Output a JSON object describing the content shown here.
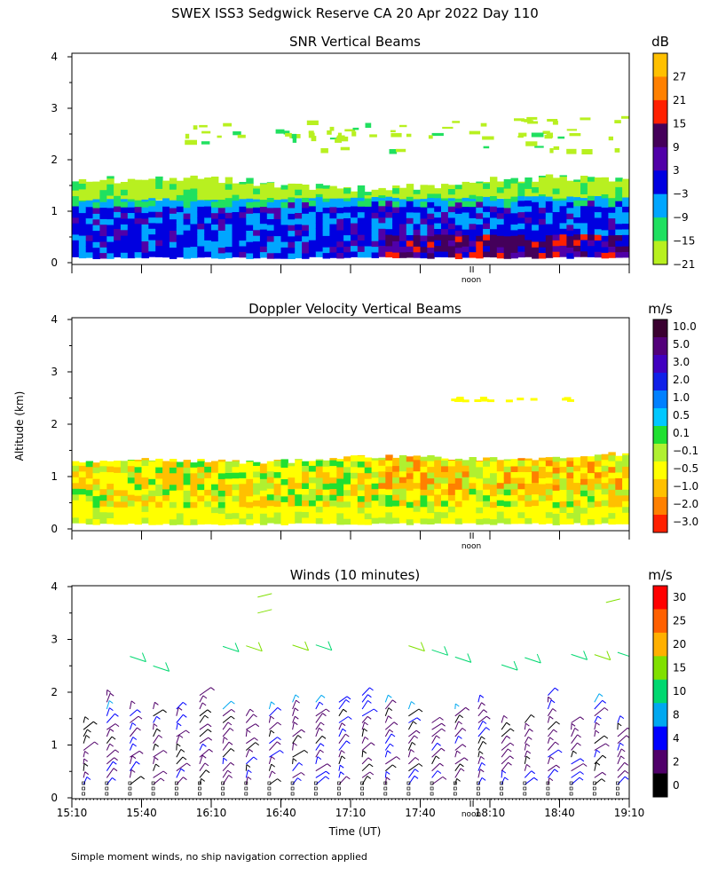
{
  "chart_data": [
    {
      "type": "heatmap",
      "title": "SNR Vertical Beams",
      "units": "dB",
      "ylabel": "Altitude (km)",
      "ylim": [
        0,
        4
      ],
      "y_ticks": [
        "0",
        "1",
        "2",
        "3",
        "4"
      ],
      "x_range": [
        "15:10",
        "19:10"
      ],
      "colorbar_labels": [
        "27",
        "21",
        "15",
        "9",
        "3",
        "−3",
        "−9",
        "−15",
        "−21"
      ],
      "colorbar_colors": [
        "#ffc000",
        "#ff8000",
        "#ff2000",
        "#44005a",
        "#5000a8",
        "#0000e0",
        "#00a6ff",
        "#20e060",
        "#b8f020"
      ],
      "noon_label": "noon",
      "layers": [
        {
          "name": "lower boundary layer (strong echo)",
          "alt_range_km": [
            0.1,
            1.2
          ],
          "snr_range_db": [
            -3,
            9
          ]
        },
        {
          "name": "upper boundary layer",
          "alt_range_km": [
            1.2,
            1.6
          ],
          "snr_range_db": [
            -21,
            -9
          ]
        },
        {
          "name": "scattered echoes aloft",
          "alt_range_km": [
            2.2,
            2.9
          ],
          "snr_range_db": [
            -21,
            -15
          ]
        }
      ]
    },
    {
      "type": "heatmap",
      "title": "Doppler Velocity Vertical Beams",
      "units": "m/s",
      "ylabel": "Altitude (km)",
      "ylim": [
        0,
        4
      ],
      "y_ticks": [
        "0",
        "1",
        "2",
        "3",
        "4"
      ],
      "x_range": [
        "15:10",
        "19:10"
      ],
      "colorbar_labels": [
        "10.0",
        "5.0",
        "3.0",
        "2.0",
        "1.0",
        "0.5",
        "0.1",
        "−0.1",
        "−0.5",
        "−1.0",
        "−2.0",
        "−3.0"
      ],
      "colorbar_colors": [
        "#3a0030",
        "#52007a",
        "#4000c0",
        "#1020e8",
        "#0080ff",
        "#00c8ff",
        "#20e030",
        "#b0f030",
        "#ffff00",
        "#ffc000",
        "#ff8000",
        "#ff2000"
      ],
      "noon_label": "noon",
      "layers": [
        {
          "name": "boundary layer (mostly near zero / slightly downward)",
          "alt_range_km": [
            0.1,
            1.3
          ],
          "velocity_range_ms": [
            -1.0,
            0.5
          ]
        }
      ]
    },
    {
      "type": "scatter",
      "title": "Winds (10 minutes)",
      "units": "m/s",
      "xlabel": "Time (UT)",
      "ylabel": "Altitude (km)",
      "ylim": [
        0,
        4
      ],
      "y_ticks": [
        "0",
        "1",
        "2",
        "3",
        "4"
      ],
      "x_ticks": [
        "15:10",
        "15:40",
        "16:10",
        "16:40",
        "17:10",
        "17:40",
        "18:10",
        "18:40",
        "19:10"
      ],
      "colorbar_labels": [
        "30",
        "25",
        "20",
        "15",
        "10",
        "8",
        "4",
        "2",
        "0"
      ],
      "colorbar_colors": [
        "#ff0000",
        "#ff6000",
        "#ffb000",
        "#80e000",
        "#00d870",
        "#00a8f0",
        "#0000ff",
        "#50006a",
        "#000000"
      ],
      "noon_label": "noon",
      "wind_barbs": "10-minute wind barb profiles from ~0.2 to ~3.9 km; 2–8 m/s below 2 km, 10–20 m/s near 2.3–3.9 km"
    }
  ],
  "page": {
    "title": "SWEX ISS3 Sedgwick Reserve CA  20 Apr 2022 Day 110",
    "y_axis_label": "Altitude (km)",
    "footnote": "Simple moment winds, no ship navigation correction applied"
  }
}
